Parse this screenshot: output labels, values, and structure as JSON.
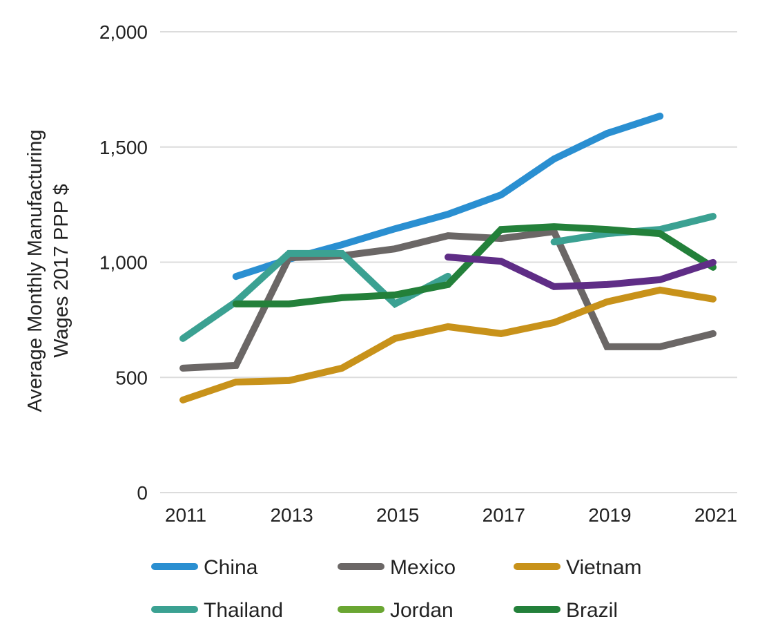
{
  "chart_data": {
    "type": "line",
    "title": "",
    "xlabel": "",
    "ylabel": [
      "Average Monthly Manufacturing",
      "Wages 2017 PPP $"
    ],
    "xlim": [
      2011,
      2021
    ],
    "ylim": [
      0,
      2000
    ],
    "x_ticks": [
      "2011",
      "2013",
      "2015",
      "2017",
      "2019",
      "2021"
    ],
    "y_ticks": [
      {
        "v": 0,
        "label": "0"
      },
      {
        "v": 500,
        "label": "500"
      },
      {
        "v": 1000,
        "label": "1,000"
      },
      {
        "v": 1500,
        "label": "1,500"
      },
      {
        "v": 2000,
        "label": "2,000"
      }
    ],
    "grid": "horizontal",
    "legend_position": "bottom",
    "x": [
      2011,
      2012,
      2013,
      2014,
      2015,
      2016,
      2017,
      2018,
      2019,
      2020,
      2021
    ],
    "series": [
      {
        "name": "China",
        "color": "#2a8fd1",
        "legend": true,
        "values": [
          null,
          938,
          1013,
          1076,
          1145,
          1208,
          1292,
          1448,
          1559,
          1634,
          null
        ]
      },
      {
        "name": "Mexico",
        "color": "#6b6766",
        "legend": true,
        "values": [
          540,
          552,
          1019,
          1028,
          1058,
          1115,
          1103,
          1133,
          633,
          633,
          690
        ]
      },
      {
        "name": "Vietnam",
        "color": "#c8921a",
        "legend": true,
        "values": [
          402,
          480,
          486,
          540,
          669,
          720,
          690,
          738,
          828,
          879,
          840
        ]
      },
      {
        "name": "Thailand",
        "color": "#3ba192",
        "legend": true,
        "values": [
          669,
          828,
          1038,
          1038,
          819,
          939,
          null,
          1088,
          1124,
          1142,
          1199
        ]
      },
      {
        "name": "Jordan",
        "color": "#6aa632",
        "legend": true,
        "values": [
          null,
          null,
          null,
          null,
          null,
          null,
          null,
          null,
          null,
          null,
          null
        ]
      },
      {
        "name": "Brazil",
        "color": "#23803a",
        "legend": true,
        "values": [
          null,
          819,
          819,
          846,
          858,
          903,
          1142,
          1154,
          1142,
          1124,
          978
        ]
      },
      {
        "name": "",
        "color": "#5f2d86",
        "legend": false,
        "values": [
          null,
          null,
          null,
          null,
          null,
          1022,
          1004,
          894,
          903,
          924,
          999
        ]
      }
    ]
  }
}
